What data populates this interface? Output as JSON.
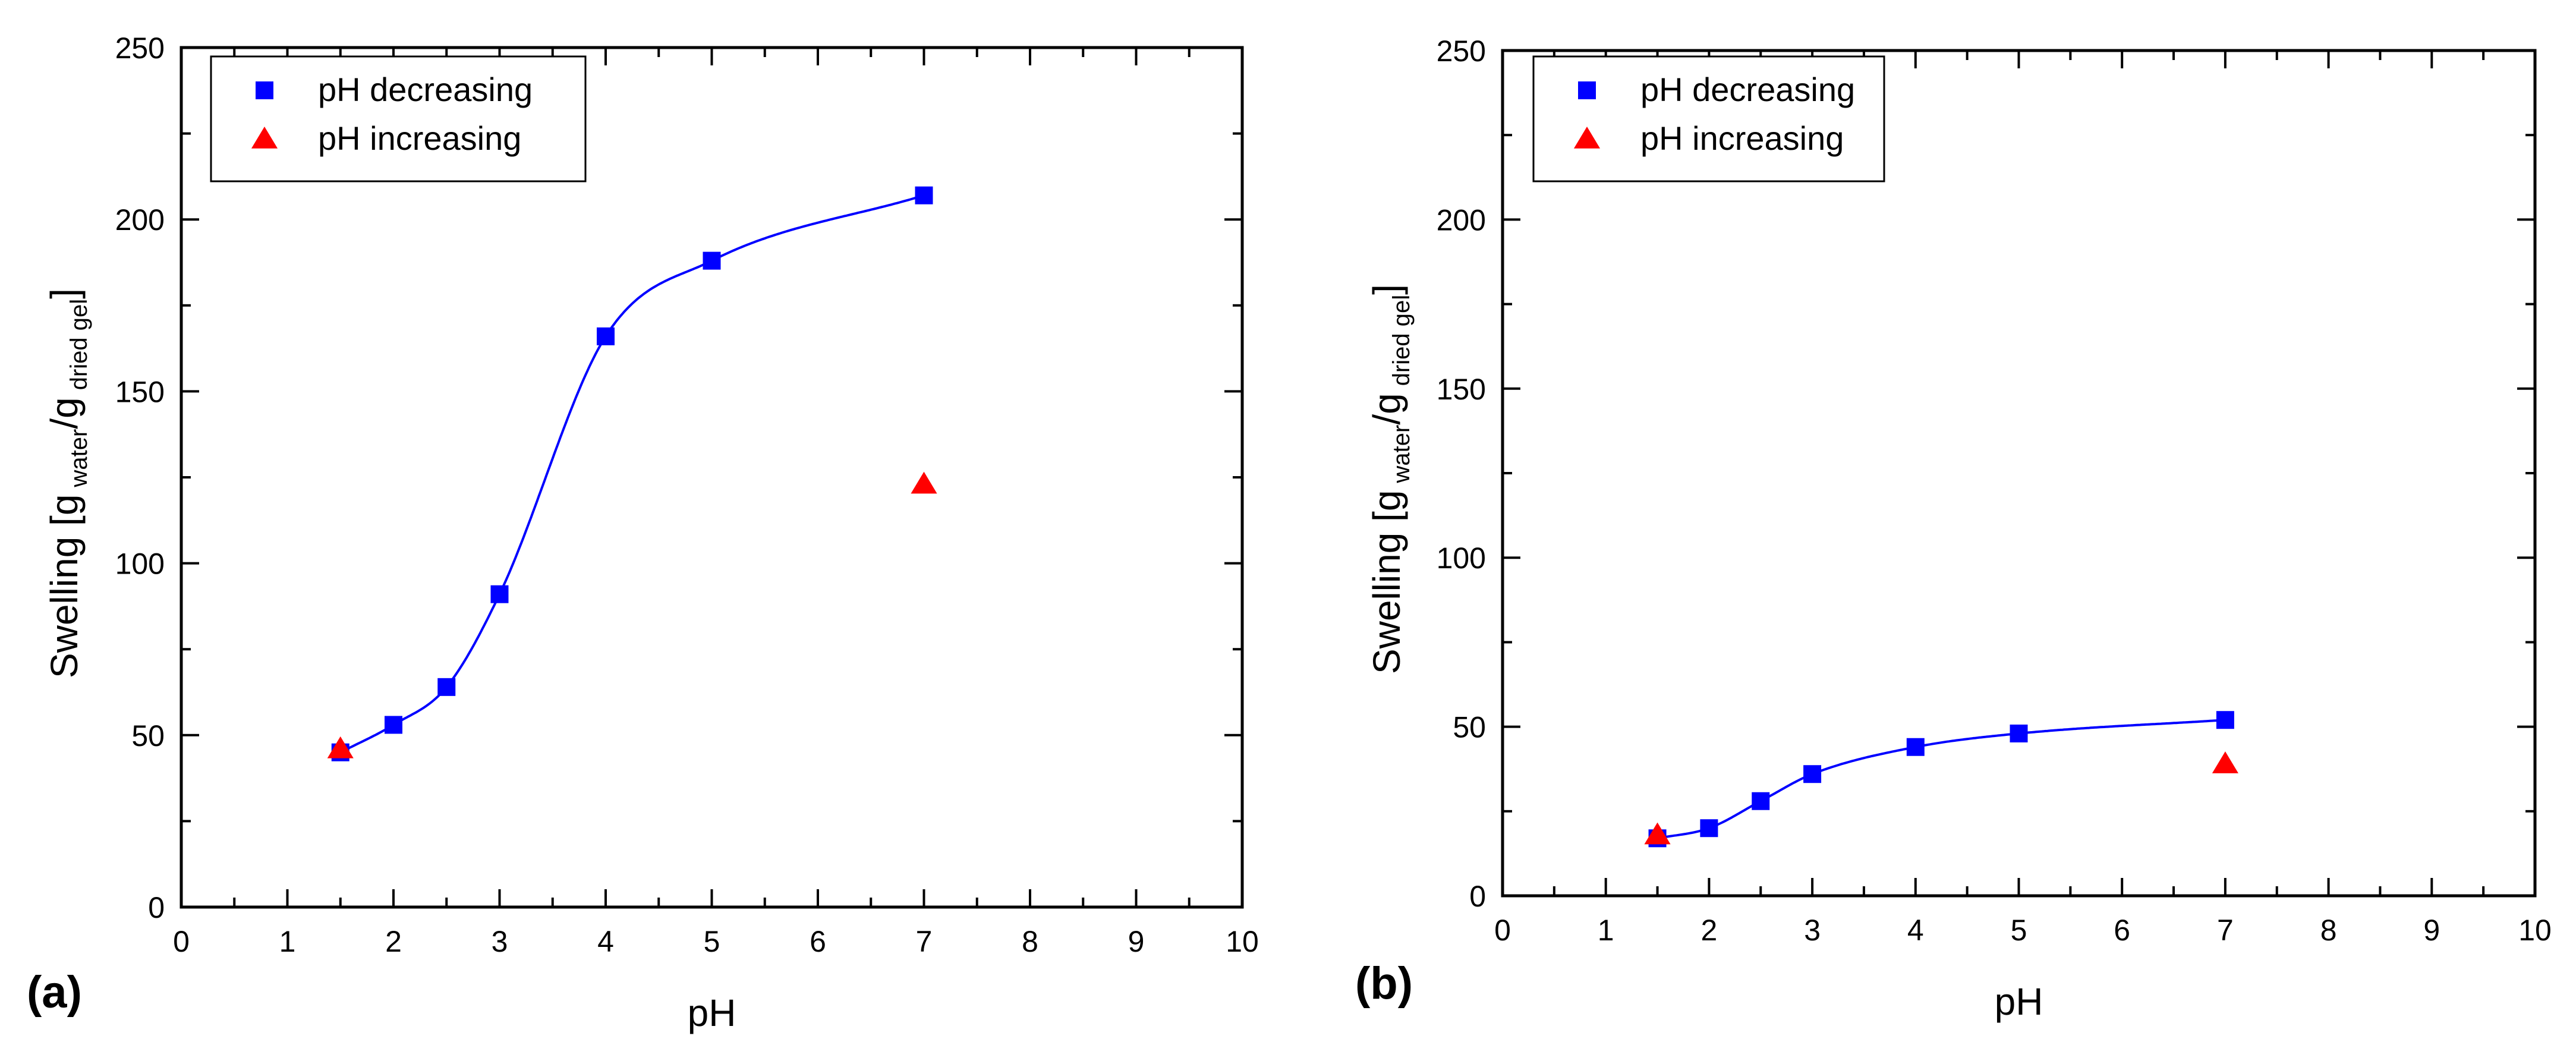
{
  "chart_data": [
    {
      "type": "scatter",
      "panel_label": "(a)",
      "xlabel": "pH",
      "ylabel": {
        "prefix": "Swelling [g",
        "sub1": "water",
        "mid": "/g",
        "sub2": "dried gel",
        "suffix": "]"
      },
      "xlim": [
        0,
        10
      ],
      "ylim": [
        0,
        250
      ],
      "xticks": [
        "0",
        "1",
        "2",
        "3",
        "4",
        "5",
        "6",
        "7",
        "8",
        "9",
        "10"
      ],
      "yticks": [
        "0",
        "50",
        "100",
        "150",
        "200",
        "250"
      ],
      "grid": false,
      "legend_position": "top-left",
      "series": [
        {
          "name": "pH decreasing",
          "marker": "square",
          "color": "#0000FF",
          "fit_line": true,
          "x": [
            1.5,
            2,
            2.5,
            3,
            4,
            5,
            7
          ],
          "y": [
            45,
            53,
            64,
            91,
            166,
            188,
            207
          ]
        },
        {
          "name": "pH increasing",
          "marker": "triangle",
          "color": "#FF0000",
          "fit_line": false,
          "x": [
            1.5,
            7
          ],
          "y": [
            46,
            123
          ]
        }
      ]
    },
    {
      "type": "scatter",
      "panel_label": "(b)",
      "xlabel": "pH",
      "ylabel": {
        "prefix": "Swelling [g",
        "sub1": "water",
        "mid": "/g",
        "sub2": "dried gel",
        "suffix": "]"
      },
      "xlim": [
        0,
        10
      ],
      "ylim": [
        0,
        250
      ],
      "xticks": [
        "0",
        "1",
        "2",
        "3",
        "4",
        "5",
        "6",
        "7",
        "8",
        "9",
        "10"
      ],
      "yticks": [
        "0",
        "50",
        "100",
        "150",
        "200",
        "250"
      ],
      "grid": false,
      "legend_position": "top-left",
      "series": [
        {
          "name": "pH decreasing",
          "marker": "square",
          "color": "#0000FF",
          "fit_line": true,
          "x": [
            1.5,
            2,
            2.5,
            3,
            4,
            5,
            7
          ],
          "y": [
            17,
            20,
            28,
            36,
            44,
            48,
            52
          ]
        },
        {
          "name": "pH increasing",
          "marker": "triangle",
          "color": "#FF0000",
          "fit_line": false,
          "x": [
            1.5,
            7
          ],
          "y": [
            18,
            39
          ]
        }
      ]
    }
  ]
}
